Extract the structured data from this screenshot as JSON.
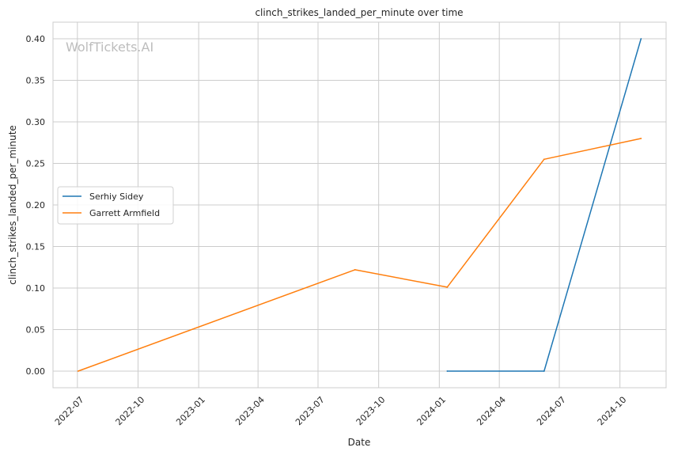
{
  "chart_data": {
    "type": "line",
    "title": "clinch_strikes_landed_per_minute over time",
    "xlabel": "Date",
    "ylabel": "clinch_strikes_landed_per_minute",
    "watermark": "WolfTickets.AI",
    "xlim": [
      "2022-05-25",
      "2024-12-10"
    ],
    "ylim": [
      -0.02,
      0.42
    ],
    "x_ticks": [
      "2022-07",
      "2022-10",
      "2023-01",
      "2023-04",
      "2023-07",
      "2023-10",
      "2024-01",
      "2024-04",
      "2024-07",
      "2024-10"
    ],
    "y_ticks": [
      "0.00",
      "0.05",
      "0.10",
      "0.15",
      "0.20",
      "0.25",
      "0.30",
      "0.35",
      "0.40"
    ],
    "grid": true,
    "legend_position": "center-left",
    "series": [
      {
        "name": "Serhiy Sidey",
        "color": "#1f77b4",
        "points": [
          {
            "x": "2024-01-13",
            "y": 0.0
          },
          {
            "x": "2024-06-08",
            "y": 0.0
          },
          {
            "x": "2024-11-02",
            "y": 0.4
          }
        ]
      },
      {
        "name": "Garrett Armfield",
        "color": "#ff7f0e",
        "points": [
          {
            "x": "2022-07-02",
            "y": 0.0
          },
          {
            "x": "2023-08-26",
            "y": 0.122
          },
          {
            "x": "2024-01-13",
            "y": 0.101
          },
          {
            "x": "2024-06-08",
            "y": 0.255
          },
          {
            "x": "2024-11-02",
            "y": 0.28
          }
        ]
      }
    ]
  }
}
